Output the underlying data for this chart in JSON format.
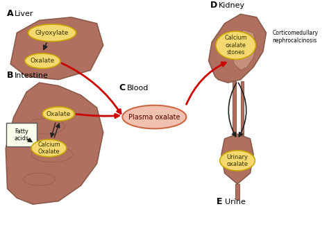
{
  "bg_color": "#ffffff",
  "organ_fill": "#b07060",
  "organ_edge": "#8b5a4a",
  "ellipse_fill": "#f5d870",
  "ellipse_edge": "#c8a800",
  "ellipse_text_color": "#333300",
  "red_arrow_color": "#cc0000",
  "black_arrow_color": "#222222",
  "plasma_fill": "#f0c0b0",
  "plasma_edge": "#cc6644",
  "fatty_box_fill": "#ffffee",
  "fatty_box_edge": "#555555",
  "label_A": "A",
  "label_B": "B",
  "label_C": "C",
  "label_D": "D",
  "label_E": "E",
  "text_liver": "Liver",
  "text_intestine": "Intestine",
  "text_blood": "Blood",
  "text_kidney": "Kidney",
  "text_urine": "Urine",
  "text_glyoxylate": "Glyoxylate",
  "text_oxalate_liver": "Oxalate",
  "text_plasma": "Plasma oxalate",
  "text_oxalate_intestine": "Oxalate",
  "text_calcium_oxalate": "Calcium\nOxalate",
  "text_fatty_acids": "Fatty\nacids",
  "text_calcium_stones": "Calcium\noxalate\nstones",
  "text_cortico": "Corticomedullary\nnephrocalcinosis",
  "text_urinary": "Urinary\noxalate",
  "fig_width": 4.74,
  "fig_height": 3.27,
  "dpi": 100
}
